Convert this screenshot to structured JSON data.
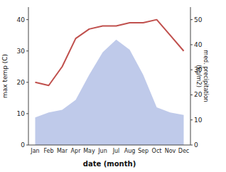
{
  "chart_data": {
    "type": "line",
    "categories": [
      "Jan",
      "Feb",
      "Mar",
      "Apr",
      "May",
      "Jun",
      "Jul",
      "Aug",
      "Sep",
      "Oct",
      "Nov",
      "Dec"
    ],
    "xlabel": "date (month)",
    "ylabel": "max temp (C)",
    "y2label": "med. precipitation\n(kg/m2)",
    "ylim": [
      0,
      44
    ],
    "yticks": [
      0,
      10,
      20,
      30,
      40
    ],
    "y2lim": [
      0,
      55
    ],
    "y2ticks": [
      0,
      10,
      20,
      30,
      40,
      50
    ],
    "series": [
      {
        "type": "area",
        "axis": "y2",
        "color": "#b8c4e8",
        "values": [
          11,
          13,
          14,
          18,
          28,
          37,
          42,
          38,
          28,
          15,
          13,
          12
        ]
      },
      {
        "type": "line",
        "color": "#c0504d",
        "values": [
          20,
          19,
          25,
          34,
          37,
          38,
          38,
          39,
          39,
          40,
          35,
          30
        ]
      }
    ]
  }
}
